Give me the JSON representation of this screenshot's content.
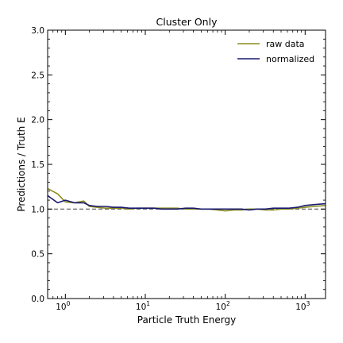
{
  "chart_data": {
    "type": "line",
    "title": "Cluster Only",
    "xlabel": "Particle Truth Energy",
    "ylabel": "Predictions / Truth E",
    "xscale": "log",
    "xlim": [
      0.6,
      1800
    ],
    "ylim": [
      0.0,
      3.0
    ],
    "y_ticks": [
      "0.0",
      "0.5",
      "1.0",
      "1.5",
      "2.0",
      "2.5",
      "3.0"
    ],
    "x_ticks": [
      {
        "base": "10",
        "exp": "0"
      },
      {
        "base": "10",
        "exp": "1"
      },
      {
        "base": "10",
        "exp": "2"
      },
      {
        "base": "10",
        "exp": "3"
      }
    ],
    "reference_line": 1.0,
    "legend": "top-right",
    "grid": false,
    "series": [
      {
        "name": "raw data",
        "color": "#8b8b1f",
        "x": [
          0.6,
          0.8,
          1.0,
          1.3,
          1.7,
          2.0,
          2.5,
          3.2,
          4.0,
          5.0,
          6.3,
          8.0,
          10,
          13,
          16,
          20,
          25,
          32,
          40,
          50,
          63,
          80,
          100,
          130,
          160,
          200,
          250,
          320,
          400,
          500,
          630,
          800,
          1000,
          1300,
          1800
        ],
        "y": [
          1.23,
          1.17,
          1.08,
          1.07,
          1.09,
          1.03,
          1.02,
          1.01,
          1.01,
          1.01,
          1.0,
          1.01,
          1.01,
          1.01,
          1.01,
          1.01,
          1.01,
          1.0,
          1.0,
          1.0,
          1.0,
          0.99,
          0.98,
          0.99,
          0.99,
          1.0,
          1.0,
          0.99,
          0.99,
          1.0,
          1.0,
          1.01,
          1.02,
          1.03,
          1.04
        ]
      },
      {
        "name": "normalized",
        "color": "#191970",
        "x": [
          0.6,
          0.8,
          1.0,
          1.3,
          1.7,
          2.0,
          2.5,
          3.2,
          4.0,
          5.0,
          6.3,
          8.0,
          10,
          13,
          16,
          20,
          25,
          32,
          40,
          50,
          63,
          80,
          100,
          130,
          160,
          200,
          250,
          320,
          400,
          500,
          630,
          800,
          1000,
          1300,
          1800
        ],
        "y": [
          1.15,
          1.07,
          1.1,
          1.07,
          1.07,
          1.04,
          1.03,
          1.03,
          1.02,
          1.02,
          1.01,
          1.01,
          1.01,
          1.01,
          1.0,
          1.0,
          1.0,
          1.01,
          1.01,
          1.0,
          1.0,
          1.0,
          1.0,
          1.0,
          1.0,
          0.99,
          1.0,
          1.0,
          1.01,
          1.01,
          1.01,
          1.02,
          1.04,
          1.05,
          1.06
        ]
      }
    ]
  }
}
